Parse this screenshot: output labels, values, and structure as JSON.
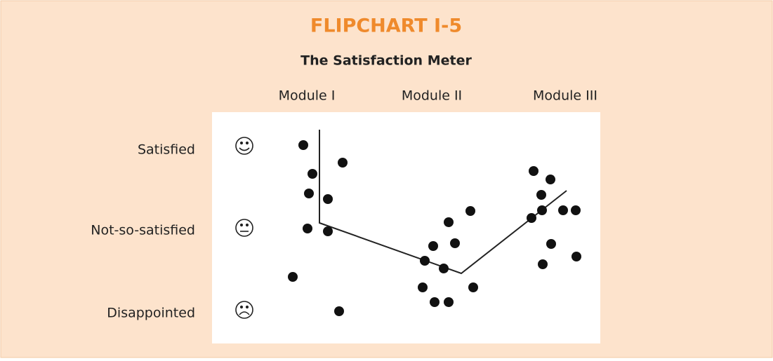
{
  "title": "FLIPCHART I-5",
  "subtitle": "The Satisfaction Meter",
  "modules": [
    "Module I",
    "Module II",
    "Module III"
  ],
  "ratings": [
    "Satisfied",
    "Not-so-satisfied",
    "Disappointed"
  ]
}
